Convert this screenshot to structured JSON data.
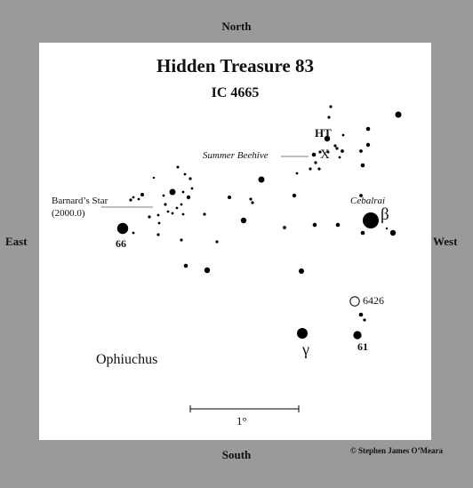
{
  "compass": {
    "north": "North",
    "south": "South",
    "east": "East",
    "west": "West"
  },
  "title": "Hidden Treasure 83",
  "subtitle": "IC 4665",
  "labels": {
    "ht": "HT",
    "x": "X",
    "summer_beehive": "Summer Beehive",
    "barnard_line1": "Barnard’s Star",
    "barnard_line2": "(2000.0)",
    "cebalrai": "Cebalrai",
    "beta": "β",
    "star_66": "66",
    "ngc_6426": "6426",
    "gamma": "γ",
    "star_61": "61",
    "constellation": "Ophiuchus",
    "scale": "1°"
  },
  "credit": "© Stephen James O’Meara",
  "colors": {
    "background": "#9a9a9a",
    "chart": "#ffffff",
    "ink": "#000000"
  }
}
